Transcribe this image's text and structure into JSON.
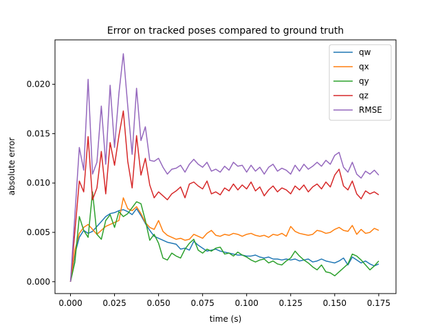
{
  "chart_data": {
    "type": "line",
    "title": "Error on tracked poses compared to ground truth",
    "xlabel": "time (s)",
    "ylabel": "absolute error",
    "xlim": [
      -0.0088,
      0.1848
    ],
    "ylim": [
      -0.0012,
      0.0245
    ],
    "xticks": [
      0.0,
      0.025,
      0.05,
      0.075,
      0.1,
      0.125,
      0.15,
      0.175
    ],
    "xtick_labels": [
      "0.000",
      "0.025",
      "0.050",
      "0.075",
      "0.100",
      "0.125",
      "0.150",
      "0.175"
    ],
    "yticks": [
      0.0,
      0.005,
      0.01,
      0.015,
      0.02
    ],
    "ytick_labels": [
      "0.000",
      "0.005",
      "0.010",
      "0.015",
      "0.020"
    ],
    "grid": false,
    "legend_position": "top-right",
    "x": [
      0.0,
      0.0025,
      0.005,
      0.0075,
      0.01,
      0.0125,
      0.015,
      0.0175,
      0.02,
      0.0225,
      0.025,
      0.0275,
      0.03,
      0.0325,
      0.035,
      0.0375,
      0.04,
      0.0425,
      0.045,
      0.0475,
      0.05,
      0.0525,
      0.055,
      0.0575,
      0.06,
      0.0625,
      0.065,
      0.0675,
      0.07,
      0.0725,
      0.075,
      0.0775,
      0.08,
      0.0825,
      0.085,
      0.0875,
      0.09,
      0.0925,
      0.095,
      0.0975,
      0.1,
      0.1025,
      0.105,
      0.1075,
      0.11,
      0.1125,
      0.115,
      0.1175,
      0.12,
      0.1225,
      0.125,
      0.1275,
      0.13,
      0.1325,
      0.135,
      0.1375,
      0.14,
      0.1425,
      0.145,
      0.1475,
      0.15,
      0.1525,
      0.155,
      0.1575,
      0.16,
      0.1625,
      0.165,
      0.1675,
      0.17,
      0.1725,
      0.175
    ],
    "series": [
      {
        "name": "qw",
        "color": "#1f77b4",
        "values": [
          0.0,
          0.0028,
          0.0045,
          0.0052,
          0.0049,
          0.0051,
          0.0056,
          0.0061,
          0.0066,
          0.0069,
          0.007,
          0.0072,
          0.0073,
          0.0071,
          0.0068,
          0.0074,
          0.0067,
          0.0059,
          0.0052,
          0.0046,
          0.0044,
          0.0042,
          0.004,
          0.0039,
          0.0038,
          0.0033,
          0.0034,
          0.0032,
          0.0041,
          0.0037,
          0.0034,
          0.0031,
          0.0032,
          0.0033,
          0.0031,
          0.003,
          0.0029,
          0.0028,
          0.0027,
          0.0027,
          0.0026,
          0.0026,
          0.0027,
          0.0025,
          0.0024,
          0.0025,
          0.0023,
          0.0023,
          0.0022,
          0.0023,
          0.0022,
          0.0023,
          0.0021,
          0.0022,
          0.0023,
          0.002,
          0.0021,
          0.0023,
          0.0021,
          0.002,
          0.0019,
          0.0021,
          0.0024,
          0.0017,
          0.0025,
          0.0022,
          0.0019,
          0.0021,
          0.0018,
          0.0016,
          0.0018
        ]
      },
      {
        "name": "qx",
        "color": "#ff7f0e",
        "values": [
          0.0,
          0.0032,
          0.0049,
          0.0055,
          0.0058,
          0.0053,
          0.0048,
          0.0052,
          0.0056,
          0.0058,
          0.006,
          0.0062,
          0.0085,
          0.0074,
          0.0072,
          0.0076,
          0.0069,
          0.006,
          0.0055,
          0.0053,
          0.0062,
          0.0051,
          0.0047,
          0.0045,
          0.0043,
          0.0044,
          0.0042,
          0.0043,
          0.0048,
          0.0046,
          0.0044,
          0.0049,
          0.0052,
          0.0047,
          0.0046,
          0.0048,
          0.0047,
          0.0049,
          0.0048,
          0.0046,
          0.0048,
          0.0049,
          0.0047,
          0.0046,
          0.0047,
          0.0045,
          0.0048,
          0.0047,
          0.0049,
          0.0046,
          0.0056,
          0.0051,
          0.0049,
          0.0048,
          0.0047,
          0.0048,
          0.0052,
          0.0051,
          0.0049,
          0.005,
          0.0053,
          0.0055,
          0.0052,
          0.0051,
          0.0057,
          0.0048,
          0.0053,
          0.0049,
          0.005,
          0.0054,
          0.0052
        ]
      },
      {
        "name": "qy",
        "color": "#2ca02c",
        "values": [
          0.0,
          0.002,
          0.0066,
          0.0052,
          0.0045,
          0.0091,
          0.0048,
          0.0043,
          0.0062,
          0.0068,
          0.0055,
          0.0071,
          0.0066,
          0.0069,
          0.0075,
          0.0081,
          0.0079,
          0.0062,
          0.0042,
          0.0048,
          0.0039,
          0.0024,
          0.0022,
          0.0029,
          0.0026,
          0.0024,
          0.0033,
          0.0039,
          0.0043,
          0.0032,
          0.0029,
          0.0033,
          0.0031,
          0.0034,
          0.0035,
          0.0028,
          0.0029,
          0.0026,
          0.003,
          0.0027,
          0.0025,
          0.0022,
          0.002,
          0.0022,
          0.0023,
          0.0019,
          0.0021,
          0.0018,
          0.0017,
          0.0021,
          0.0024,
          0.0031,
          0.0026,
          0.0022,
          0.0019,
          0.0015,
          0.0012,
          0.0017,
          0.001,
          0.0009,
          0.0006,
          0.001,
          0.0014,
          0.0018,
          0.0028,
          0.0026,
          0.0022,
          0.0017,
          0.0012,
          0.0016,
          0.0021
        ]
      },
      {
        "name": "qz",
        "color": "#d62728",
        "values": [
          0.0,
          0.0051,
          0.0102,
          0.0091,
          0.0147,
          0.0083,
          0.0095,
          0.0132,
          0.0089,
          0.0141,
          0.0118,
          0.0148,
          0.0173,
          0.0122,
          0.0095,
          0.0148,
          0.0108,
          0.0125,
          0.0098,
          0.0085,
          0.0091,
          0.0087,
          0.0083,
          0.0089,
          0.0092,
          0.0096,
          0.0085,
          0.0099,
          0.0101,
          0.0097,
          0.0094,
          0.0102,
          0.0089,
          0.0091,
          0.0088,
          0.0095,
          0.0092,
          0.0099,
          0.0093,
          0.0098,
          0.0094,
          0.0101,
          0.0092,
          0.0096,
          0.0087,
          0.0093,
          0.0097,
          0.0091,
          0.0095,
          0.0093,
          0.0089,
          0.0097,
          0.0093,
          0.0098,
          0.0091,
          0.0096,
          0.0099,
          0.0094,
          0.0101,
          0.0096,
          0.0108,
          0.0114,
          0.0097,
          0.0093,
          0.0102,
          0.0089,
          0.0084,
          0.0092,
          0.0089,
          0.0091,
          0.0088
        ]
      },
      {
        "name": "RMSE",
        "color": "#9467bd",
        "values": [
          0.0,
          0.0068,
          0.0136,
          0.0113,
          0.0205,
          0.0109,
          0.0121,
          0.0178,
          0.0119,
          0.0199,
          0.0136,
          0.0191,
          0.0231,
          0.0178,
          0.0129,
          0.0196,
          0.0143,
          0.0157,
          0.0123,
          0.0122,
          0.0125,
          0.0116,
          0.0109,
          0.0114,
          0.0115,
          0.0118,
          0.0111,
          0.0119,
          0.0124,
          0.0119,
          0.0116,
          0.0121,
          0.0112,
          0.0114,
          0.0111,
          0.0117,
          0.0113,
          0.0121,
          0.0117,
          0.0118,
          0.0111,
          0.0118,
          0.0112,
          0.0116,
          0.0109,
          0.0116,
          0.0119,
          0.0112,
          0.0115,
          0.0113,
          0.0109,
          0.0118,
          0.0112,
          0.0119,
          0.0114,
          0.0117,
          0.0121,
          0.0117,
          0.0123,
          0.0119,
          0.0128,
          0.0131,
          0.0116,
          0.0111,
          0.0121,
          0.0109,
          0.0105,
          0.0112,
          0.0109,
          0.0113,
          0.0108
        ]
      }
    ]
  }
}
